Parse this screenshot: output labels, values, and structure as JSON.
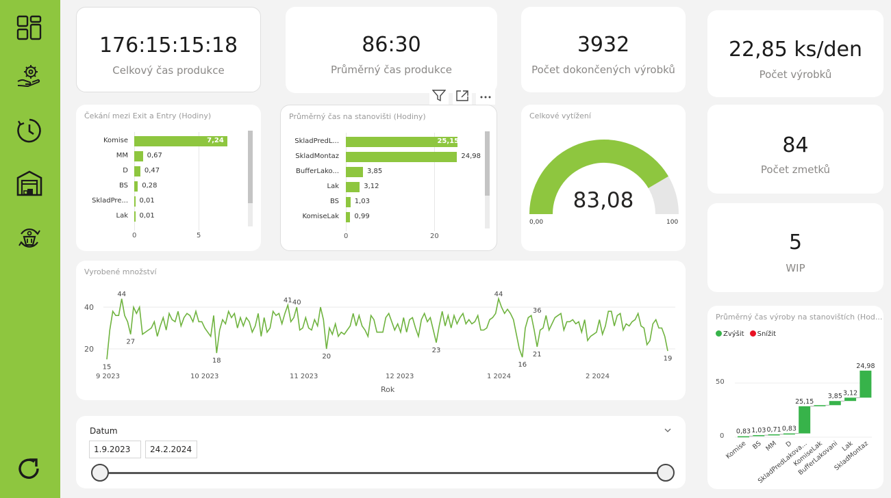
{
  "nav": [
    "dashboard-icon",
    "production-icon",
    "time-icon",
    "warehouse-icon",
    "recycle-icon",
    "refresh-icon"
  ],
  "kpis": {
    "total_time": {
      "value": "176:15:15:18",
      "label": "Celkový čas produkce"
    },
    "avg_time": {
      "value": "86:30",
      "label": "Průměrný čas produkce"
    },
    "completed": {
      "value": "3932",
      "label": "Počet dokončených výrobků"
    },
    "per_day": {
      "value": "22,85 ks/den",
      "label": "Počet výrobků"
    },
    "scrap": {
      "value": "84",
      "label": "Počet zmetků"
    },
    "wip": {
      "value": "5",
      "label": "WIP"
    }
  },
  "wait_chart": {
    "title": "Čekání mezi Exit a Entry (Hodiny)",
    "rows": [
      {
        "label": "Komise",
        "value": 7.24,
        "text": "7,24"
      },
      {
        "label": "MM",
        "value": 0.67,
        "text": "0,67"
      },
      {
        "label": "D",
        "value": 0.47,
        "text": "0,47"
      },
      {
        "label": "BS",
        "value": 0.28,
        "text": "0,28"
      },
      {
        "label": "SkladPre...",
        "value": 0.01,
        "text": "0,01"
      },
      {
        "label": "Lak",
        "value": 0.01,
        "text": "0,01"
      }
    ],
    "ticks": [
      "0",
      "5"
    ]
  },
  "station_chart": {
    "title": "Průměrný čas na stanovišti (Hodiny)",
    "rows": [
      {
        "label": "SkladPredL...",
        "value": 25.15,
        "text": "25,15"
      },
      {
        "label": "SkladMontaz",
        "value": 24.98,
        "text": "24,98"
      },
      {
        "label": "BufferLako...",
        "value": 3.85,
        "text": "3,85"
      },
      {
        "label": "Lak",
        "value": 3.12,
        "text": "3,12"
      },
      {
        "label": "BS",
        "value": 1.03,
        "text": "1,03"
      },
      {
        "label": "KomiseLak",
        "value": 0.99,
        "text": "0,99"
      }
    ],
    "ticks": [
      "0",
      "20"
    ]
  },
  "gauge": {
    "title": "Celkové vytížení",
    "value": 83.08,
    "value_text": "83,08",
    "min": "0,00",
    "max": "100",
    "color": "#8ec63f",
    "track_color": "#e6e6e6"
  },
  "line_chart": {
    "title": "Vyrobené množství",
    "xlabel": "Rok",
    "x_ticks": [
      "9 2023",
      "10 2023",
      "11 2023",
      "12 2023",
      "1 2024",
      "2 2024"
    ],
    "y_ticks": [
      "40",
      "20"
    ],
    "annotations": [
      "15",
      "44",
      "27",
      "18",
      "41",
      "40",
      "20",
      "23",
      "44",
      "16",
      "36",
      "21",
      "19"
    ]
  },
  "waterfall": {
    "title": "Průměrný čas výroby na stanovištích (Hod...",
    "legend": [
      {
        "label": "Zvýšit",
        "color": "#37b34a"
      },
      {
        "label": "Snížit",
        "color": "#e81123"
      }
    ],
    "y_ticks": [
      "50",
      "0"
    ],
    "categories": [
      "Komise",
      "BS",
      "MM",
      "D",
      "SkladPredLakova...",
      "KomiseLak",
      "BufferLakovani",
      "Lak",
      "SkladMontaz"
    ],
    "value_texts": [
      "0,83",
      "1,03",
      "0,71",
      "0,83",
      "25,15",
      "",
      "3,85",
      "3,12",
      "24,98"
    ]
  },
  "slicer": {
    "title": "Datum",
    "from": "1.9.2023",
    "to": "24.2.2024"
  },
  "chart_data": [
    {
      "type": "bar",
      "title": "Čekání mezi Exit a Entry (Hodiny)",
      "categories": [
        "Komise",
        "MM",
        "D",
        "BS",
        "SkladPre...",
        "Lak"
      ],
      "values": [
        7.24,
        0.67,
        0.47,
        0.28,
        0.01,
        0.01
      ],
      "xlim": [
        0,
        10
      ]
    },
    {
      "type": "bar",
      "title": "Průměrný čas na stanovišti (Hodiny)",
      "categories": [
        "SkladPredL...",
        "SkladMontaz",
        "BufferLako...",
        "Lak",
        "BS",
        "KomiseLak"
      ],
      "values": [
        25.15,
        24.98,
        3.85,
        3.12,
        1.03,
        0.99
      ],
      "xlim": [
        0,
        40
      ]
    },
    {
      "type": "line",
      "title": "Vyrobené množství",
      "xlabel": "Rok",
      "ylim": [
        14,
        48
      ],
      "values": [
        15,
        29,
        38,
        36,
        36,
        44,
        36,
        33,
        27,
        40,
        37,
        40,
        27,
        28,
        29,
        30,
        33,
        26,
        31,
        35,
        29,
        37,
        34,
        33,
        38,
        31,
        35,
        37,
        36,
        33,
        38,
        33,
        33,
        30,
        28,
        26,
        36,
        18,
        29,
        34,
        32,
        38,
        35,
        37,
        30,
        35,
        31,
        35,
        33,
        28,
        31,
        37,
        26,
        35,
        28,
        30,
        38,
        36,
        37,
        32,
        37,
        41,
        33,
        35,
        40,
        29,
        30,
        35,
        30,
        29,
        34,
        31,
        40,
        34,
        20,
        30,
        27,
        32,
        26,
        28,
        27,
        29,
        31,
        37,
        31,
        36,
        31,
        29,
        26,
        36,
        34,
        28,
        28,
        28,
        35,
        37,
        33,
        29,
        32,
        28,
        35,
        28,
        34,
        35,
        30,
        26,
        34,
        37,
        33,
        35,
        29,
        23,
        31,
        38,
        31,
        36,
        30,
        36,
        32,
        35,
        37,
        32,
        34,
        32,
        33,
        36,
        29,
        29,
        30,
        34,
        35,
        37,
        44,
        40,
        37,
        39,
        37,
        34,
        27,
        20,
        16,
        30,
        35,
        36,
        29,
        21,
        29,
        30,
        36,
        29,
        32,
        35,
        36,
        37,
        29,
        33,
        33,
        34,
        32,
        33,
        28,
        34,
        24,
        26,
        27,
        28,
        34,
        27,
        31,
        38,
        38,
        31,
        36,
        37,
        29,
        32,
        31,
        33,
        34,
        37,
        31,
        30,
        22,
        24,
        32,
        34,
        30,
        30,
        26,
        19
      ]
    },
    {
      "type": "bar",
      "title": "Průměrný čas výroby na stanovištích (Hod...",
      "categories": [
        "Komise",
        "BS",
        "MM",
        "D",
        "SkladPredLakova...",
        "KomiseLak",
        "BufferLakovani",
        "Lak",
        "SkladMontaz"
      ],
      "values": [
        0.83,
        1.03,
        0.71,
        0.83,
        25.15,
        0.99,
        3.85,
        3.12,
        24.98
      ],
      "ylim": [
        0,
        65
      ]
    }
  ]
}
